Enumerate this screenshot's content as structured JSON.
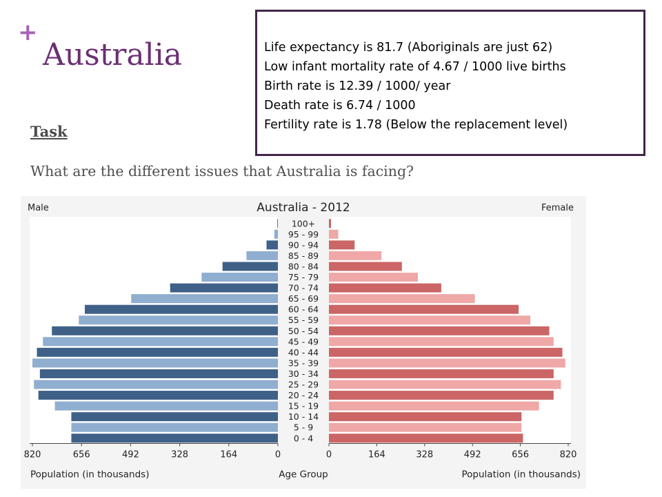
{
  "slide": {
    "plus": "+",
    "title": "Australia",
    "facts": [
      "Life expectancy is 81.7 (Aboriginals are just 62)",
      "Low infant mortality rate of 4.67 / 1000 live births",
      "Birth rate is 12.39 / 1000/ year",
      "Death rate is 6.74 / 1000",
      "Fertility rate is 1.78 (Below the replacement level)"
    ],
    "task_label": "Task",
    "question": "What are the different issues that Australia is facing?"
  },
  "chart_data": {
    "type": "bar",
    "title": "Australia - 2012",
    "left_label": "Male",
    "right_label": "Female",
    "xlabel_left": "Population (in thousands)",
    "xlabel_center": "Age Group",
    "xlabel_right": "Population (in thousands)",
    "x_ticks_left": [
      "820",
      "656",
      "492",
      "328",
      "164",
      "0"
    ],
    "x_ticks_right": [
      "0",
      "164",
      "328",
      "492",
      "656",
      "820"
    ],
    "xlim": [
      0,
      820
    ],
    "categories": [
      "100+",
      "95 - 99",
      "90 - 94",
      "85 - 89",
      "80 - 84",
      "75 - 79",
      "70 - 74",
      "65 - 69",
      "60 - 64",
      "55 - 59",
      "50 - 54",
      "45 - 49",
      "40 - 44",
      "35 - 39",
      "30 - 34",
      "25 - 29",
      "20 - 24",
      "15 - 19",
      "10 - 14",
      "5 - 9",
      "0 - 4"
    ],
    "series": [
      {
        "name": "Male",
        "values": [
          2,
          12,
          38,
          105,
          185,
          255,
          360,
          490,
          645,
          665,
          755,
          785,
          805,
          820,
          795,
          815,
          800,
          745,
          690,
          690,
          690
        ]
      },
      {
        "name": "Female",
        "values": [
          7,
          32,
          88,
          180,
          250,
          305,
          385,
          500,
          650,
          690,
          755,
          770,
          800,
          810,
          770,
          795,
          770,
          720,
          660,
          660,
          665
        ]
      }
    ],
    "colors": {
      "male_dark": "#3f6188",
      "male_light": "#90aecf",
      "female_dark": "#cb6566",
      "female_light": "#efa8a7"
    }
  }
}
